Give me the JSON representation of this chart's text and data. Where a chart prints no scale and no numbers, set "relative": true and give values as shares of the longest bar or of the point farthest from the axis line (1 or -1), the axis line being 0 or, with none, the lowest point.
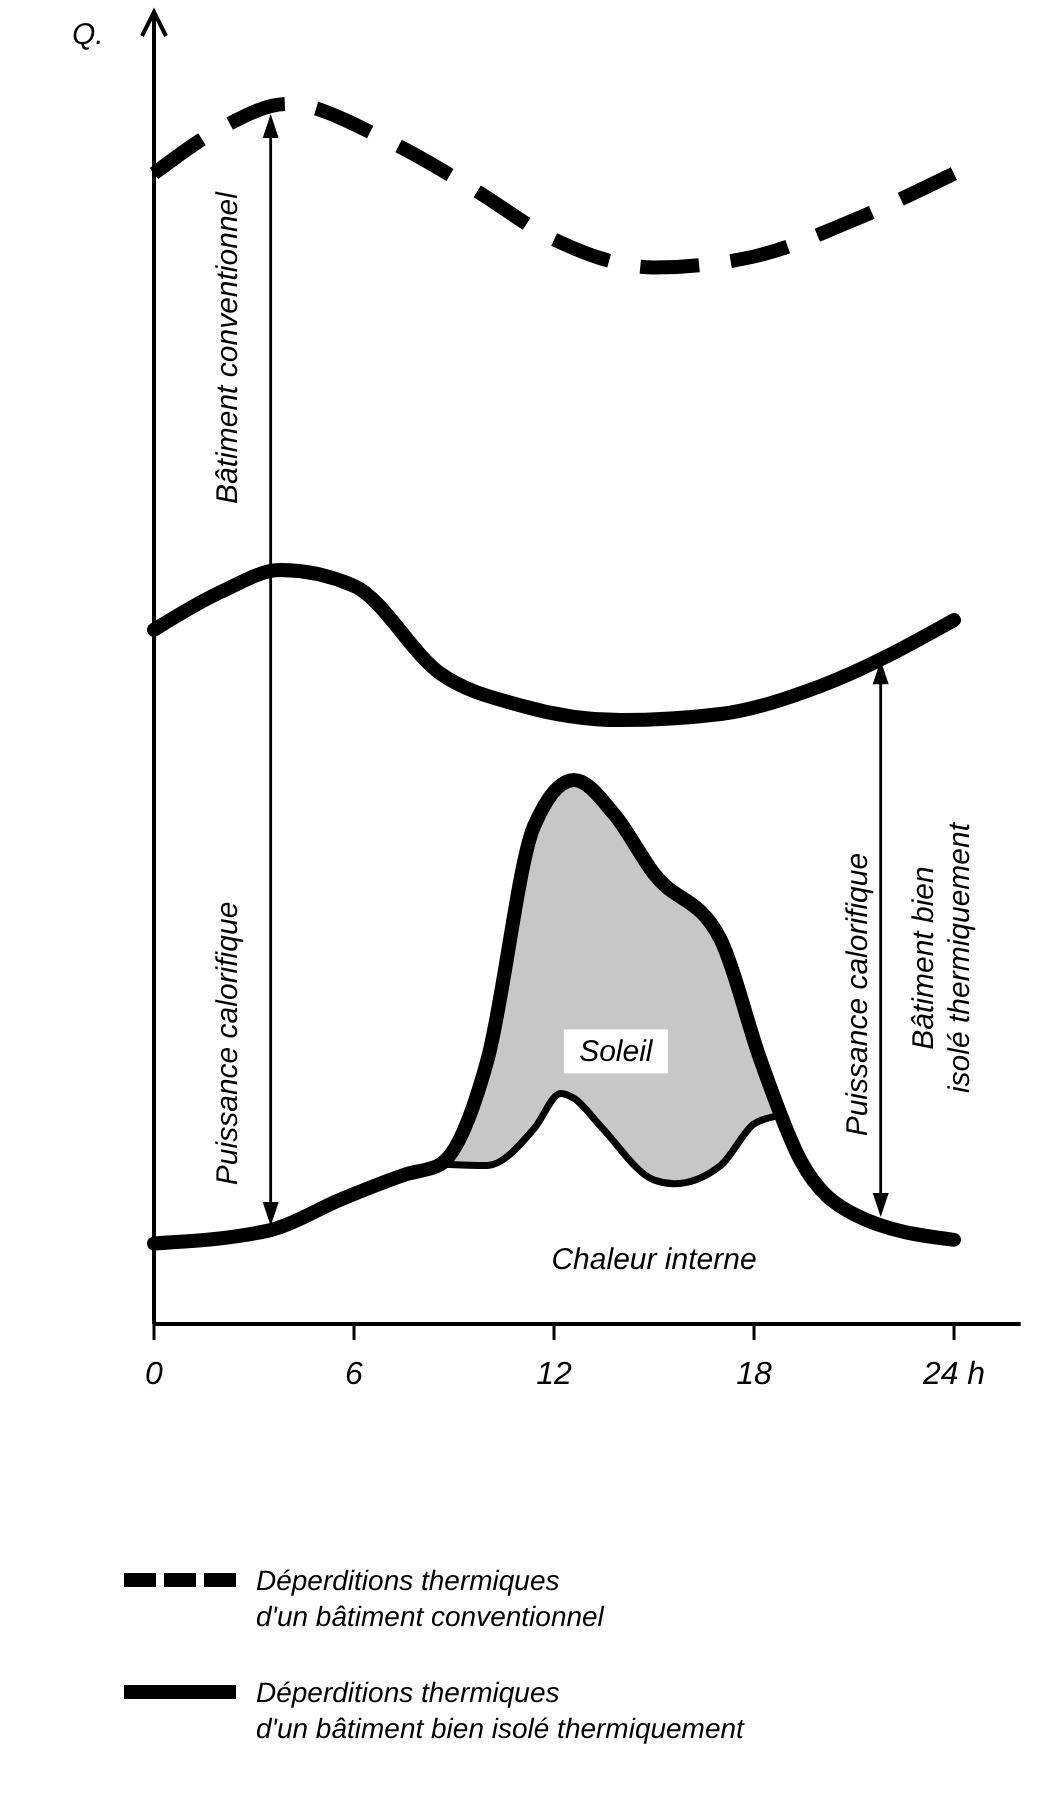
{
  "chart_data": {
    "type": "line",
    "relative": true,
    "ylabel": "Q.",
    "xlim": [
      0,
      26
    ],
    "xticks": [
      0,
      6,
      12,
      18,
      {
        "value": 24,
        "label": "24 h"
      }
    ],
    "legend": "bottom",
    "tick_labels": "x",
    "series": [
      {
        "name": "Déperditions thermiques d'un bâtiment conventionnel",
        "color": "#000000",
        "line_style": "dashed",
        "x": [
          0,
          2,
          4,
          7,
          9.6,
          12,
          15,
          18,
          21,
          24
        ],
        "values": [
          0.943,
          0.98,
          1,
          0.97,
          0.93,
          0.889,
          0.866,
          0.875,
          0.905,
          0.943
        ]
      },
      {
        "name": "Déperditions thermiques d'un bâtiment bien isolé thermiquement",
        "color": "#000000",
        "line_style": "solid",
        "x": [
          0,
          2,
          3.8,
          6,
          8.6,
          11,
          14,
          17,
          20,
          24
        ],
        "values": [
          0.569,
          0.6,
          0.618,
          0.605,
          0.533,
          0.507,
          0.495,
          0.5,
          0.523,
          0.577
        ]
      },
      {
        "color": "#000000",
        "line_style": "solid",
        "x": [
          0,
          3.5,
          5.6,
          7.6,
          8.6,
          10,
          11.4,
          12.6,
          13.8,
          15,
          17,
          18.2,
          19.4,
          21,
          24
        ],
        "values": [
          0.066,
          0.077,
          0.102,
          0.123,
          0.131,
          0.216,
          0.408,
          0.446,
          0.418,
          0.369,
          0.315,
          0.216,
          0.134,
          0.09,
          0.069
        ]
      },
      {
        "name": "Soleil",
        "color": "#000000",
        "line_style": "solid",
        "x": [
          8.6,
          10,
          11.4,
          12.2,
          12.6,
          13.4,
          15,
          15.6,
          17,
          18,
          18.6
        ],
        "values": [
          0.131,
          0.13,
          0.16,
          0.189,
          0.185,
          0.162,
          0.118,
          0.115,
          0.13,
          0.164,
          0.17
        ],
        "lower": [
          0.131,
          0.13,
          0.16,
          0.189,
          0.185,
          0.162,
          0.118,
          0.115,
          0.13,
          0.164,
          0.17
        ],
        "upper": [
          0.131,
          0.216,
          0.408,
          0.44,
          0.446,
          0.43,
          0.369,
          0.35,
          0.315,
          0.24,
          0.17
        ]
      }
    ],
    "annotations": [
      "Puissance calorifique",
      "Bâtiment conventionnel",
      "Puissance calorifique",
      "Bâtiment bien isolé thermiquement",
      "Chaleur interne"
    ]
  }
}
